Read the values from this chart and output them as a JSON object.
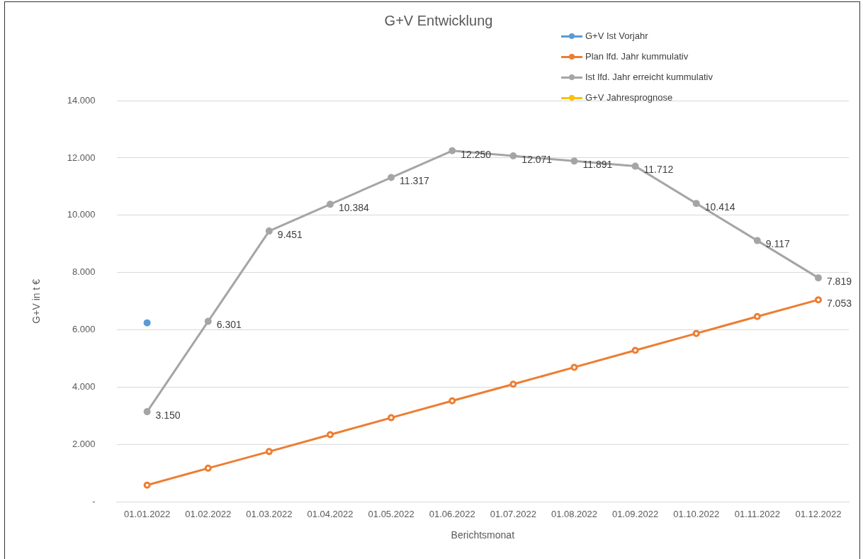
{
  "chart_data": {
    "type": "line",
    "title": "G+V Entwicklung",
    "xlabel": "Berichtsmonat",
    "ylabel": "G+V in t €",
    "categories": [
      "01.01.2022",
      "01.02.2022",
      "01.03.2022",
      "01.04.2022",
      "01.05.2022",
      "01.06.2022",
      "01.07.2022",
      "01.08.2022",
      "01.09.2022",
      "01.10.2022",
      "01.11.2022",
      "01.12.2022"
    ],
    "series": [
      {
        "name": "G+V Ist Vorjahr",
        "color": "#5b9bd5",
        "values": [
          6250,
          null,
          null,
          null,
          null,
          null,
          null,
          null,
          null,
          null,
          null,
          null
        ]
      },
      {
        "name": "Plan lfd. Jahr kummulativ",
        "color": "#ed7d31",
        "values": [
          590,
          1180,
          1760,
          2350,
          2940,
          3530,
          4110,
          4700,
          5290,
          5880,
          6470,
          7053
        ],
        "value_labels": [
          null,
          null,
          null,
          null,
          null,
          null,
          null,
          null,
          null,
          null,
          null,
          "7.053"
        ]
      },
      {
        "name": "Ist lfd. Jahr erreicht kummulativ",
        "color": "#a5a5a5",
        "values": [
          3150,
          6301,
          9451,
          10384,
          11317,
          12250,
          12071,
          11891,
          11712,
          10414,
          9117,
          7819
        ],
        "value_labels": [
          "3.150",
          "6.301",
          "9.451",
          "10.384",
          "11.317",
          "12.250",
          "12.071",
          "11.891",
          "11.712",
          "10.414",
          "9.117",
          "7.819"
        ]
      },
      {
        "name": "G+V Jahresprognose",
        "color": "#ffc000",
        "values": [
          null,
          null,
          null,
          null,
          null,
          null,
          null,
          null,
          null,
          null,
          null,
          null
        ]
      }
    ],
    "ylim": [
      0,
      14000
    ],
    "yticks": [
      {
        "value": 0,
        "label": "-"
      },
      {
        "value": 2000,
        "label": "2.000"
      },
      {
        "value": 4000,
        "label": "4.000"
      },
      {
        "value": 6000,
        "label": "6.000"
      },
      {
        "value": 8000,
        "label": "8.000"
      },
      {
        "value": 10000,
        "label": "10.000"
      },
      {
        "value": 12000,
        "label": "12.000"
      },
      {
        "value": 14000,
        "label": "14.000"
      }
    ],
    "grid": "y",
    "legend": "top right",
    "marker": "circle",
    "line_style": "solid"
  }
}
